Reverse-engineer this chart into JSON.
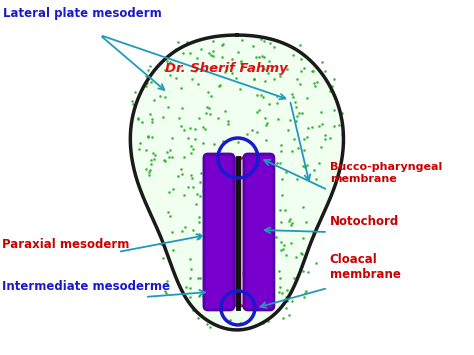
{
  "background_color": "#ffffff",
  "embryo_outline_color": "#1a1a1a",
  "embryo_fill_color": "#f0fff0",
  "green_dot_color": "#22aa22",
  "lateral_plate_label": "Lateral plate mesoderm",
  "paraxial_label": "Paraxial mesoderm",
  "intermediate_label": "Intermediate mesoderme",
  "bucco_label": "Bucco-pharyngeal\nmembrane",
  "notochord_label": "Notochord",
  "cloacal_label": "Cloacal\nmembrane",
  "watermark": "Dr. Sherif Fahmy",
  "label_color_red": "#cc0000",
  "label_color_blue": "#1a1acc",
  "arrow_color": "#2299bb",
  "purple_color": "#7700cc",
  "purple_edge_color": "#5500aa",
  "red_fill_color": "#ffdddd",
  "red_edge_color": "#dd1111",
  "notochord_color": "#111111",
  "circle_color": "#1a1acc"
}
